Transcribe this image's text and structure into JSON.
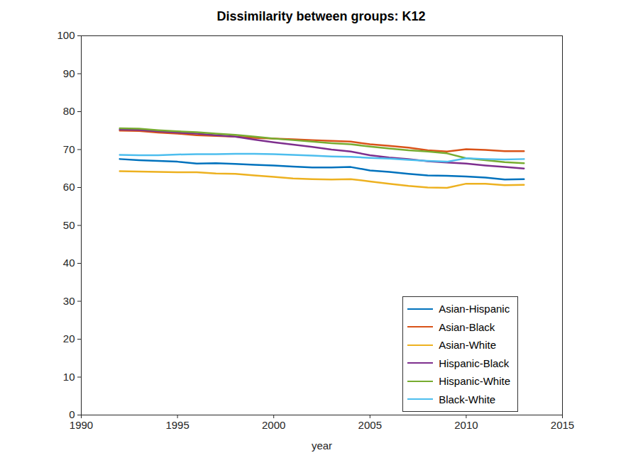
{
  "chart_data": {
    "type": "line",
    "title": "Dissimilarity between groups: K12",
    "x_label": "year",
    "x": [
      1992,
      1993,
      1994,
      1995,
      1996,
      1997,
      1998,
      1999,
      2000,
      2001,
      2002,
      2003,
      2004,
      2005,
      2006,
      2007,
      2008,
      2009,
      2010,
      2011,
      2012,
      2013
    ],
    "series": [
      {
        "name": "Asian-Hispanic",
        "color": "#0072BD",
        "values": [
          67.5,
          67.2,
          67.0,
          66.8,
          66.3,
          66.4,
          66.2,
          66.0,
          65.8,
          65.5,
          65.3,
          65.3,
          65.4,
          64.5,
          64.1,
          63.6,
          63.2,
          63.1,
          62.9,
          62.6,
          62.1,
          62.2
        ]
      },
      {
        "name": "Asian-Black",
        "color": "#D95319",
        "values": [
          75.0,
          74.9,
          74.5,
          74.2,
          73.8,
          73.6,
          73.4,
          73.1,
          72.9,
          72.7,
          72.5,
          72.3,
          72.1,
          71.4,
          71.0,
          70.5,
          69.8,
          69.5,
          70.1,
          69.9,
          69.6,
          69.6
        ]
      },
      {
        "name": "Asian-White",
        "color": "#EDB120",
        "values": [
          64.3,
          64.2,
          64.1,
          64.0,
          64.0,
          63.7,
          63.6,
          63.2,
          62.8,
          62.4,
          62.2,
          62.1,
          62.2,
          61.6,
          61.0,
          60.4,
          60.0,
          59.9,
          61.0,
          61.0,
          60.6,
          60.7
        ]
      },
      {
        "name": "Hispanic-Black",
        "color": "#7E2F8E",
        "values": [
          75.3,
          75.2,
          74.8,
          74.5,
          74.2,
          73.8,
          73.4,
          72.6,
          71.9,
          71.3,
          70.7,
          70.0,
          69.5,
          68.5,
          67.9,
          67.5,
          66.9,
          66.6,
          66.3,
          65.8,
          65.4,
          65.0
        ]
      },
      {
        "name": "Hispanic-White",
        "color": "#77AC30",
        "values": [
          75.6,
          75.5,
          75.1,
          74.8,
          74.6,
          74.2,
          73.9,
          73.4,
          72.9,
          72.5,
          72.1,
          71.7,
          71.4,
          70.8,
          70.3,
          69.8,
          69.5,
          69.0,
          67.7,
          67.2,
          66.7,
          66.4
        ]
      },
      {
        "name": "Black-White",
        "color": "#4DBEEE",
        "values": [
          68.6,
          68.5,
          68.5,
          68.7,
          68.8,
          68.8,
          68.9,
          68.9,
          68.8,
          68.6,
          68.4,
          68.2,
          68.1,
          67.8,
          67.6,
          67.3,
          67.0,
          66.8,
          67.7,
          67.5,
          67.4,
          67.5
        ]
      }
    ],
    "xlim": [
      1990,
      2015
    ],
    "xticks": [
      1990,
      1995,
      2000,
      2005,
      2010,
      2015
    ],
    "ylim": [
      0,
      100
    ],
    "yticks": [
      0,
      10,
      20,
      30,
      40,
      50,
      60,
      70,
      80,
      90,
      100
    ],
    "legend": "southeast",
    "grid": false
  }
}
